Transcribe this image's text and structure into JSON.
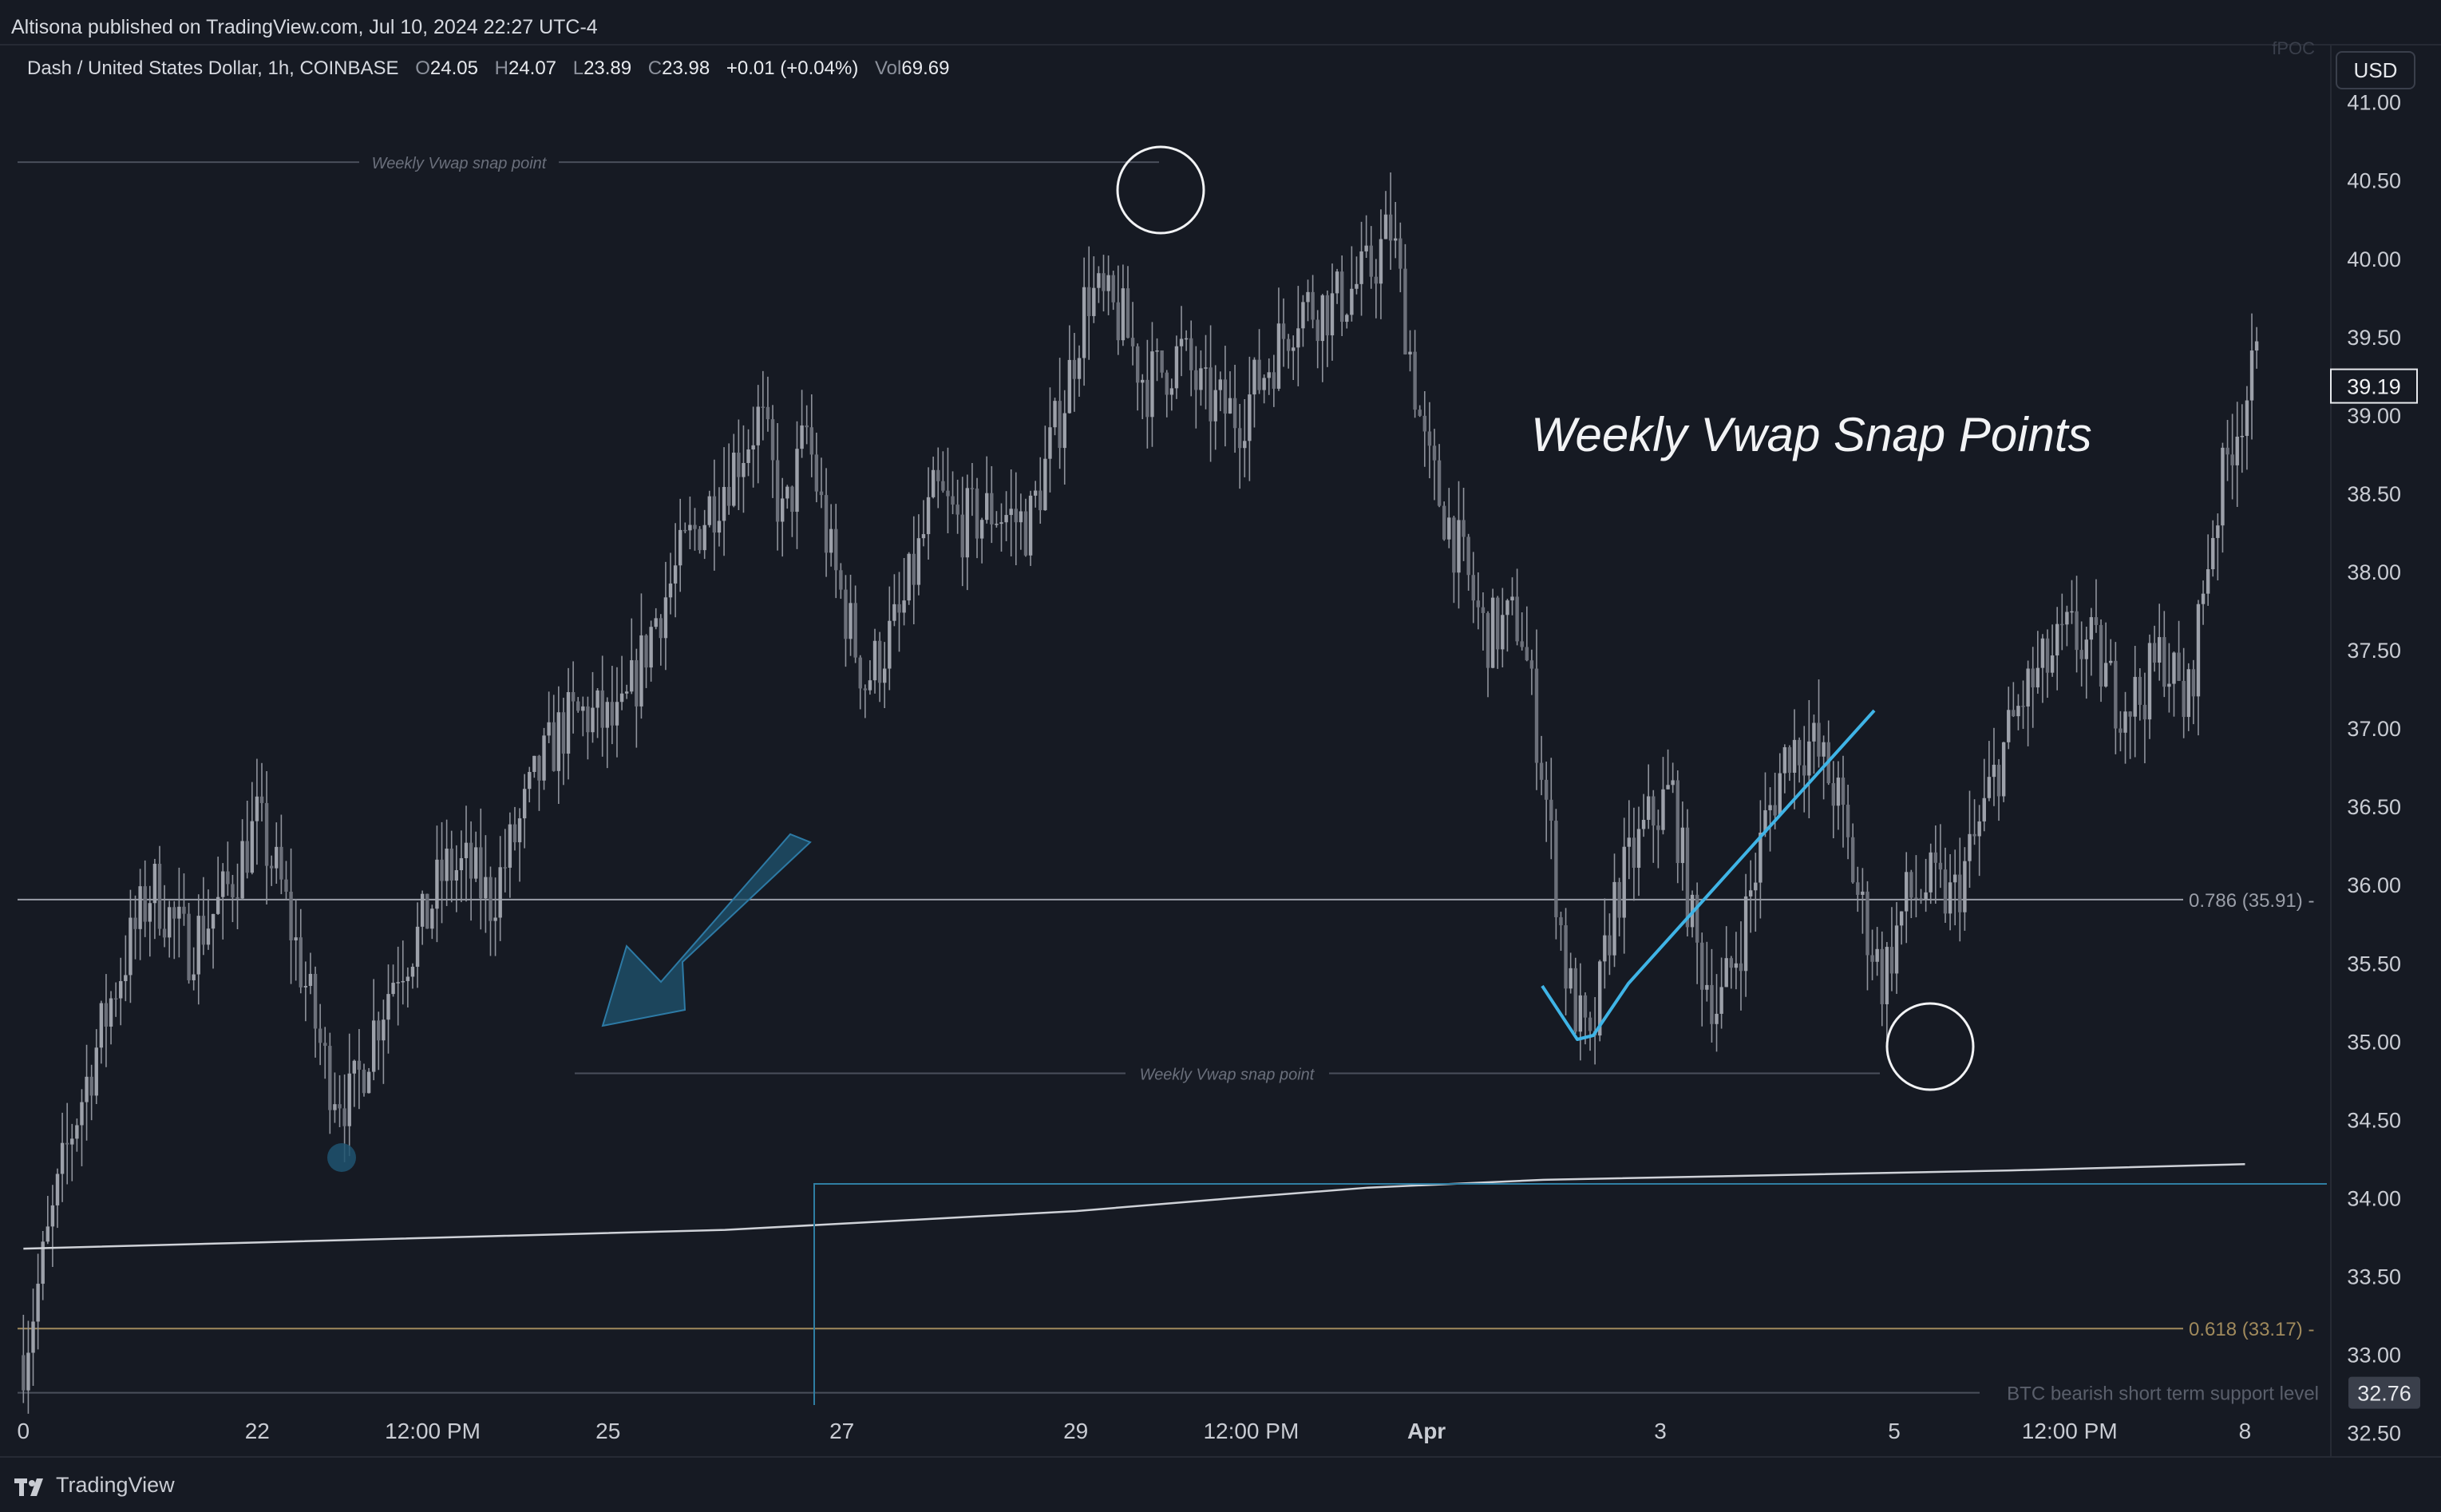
{
  "header": {
    "published": "Altisona published on TradingView.com, Jul 10, 2024 22:27 UTC-4"
  },
  "legend": {
    "symbol": "Dash / United States Dollar, 1h, COINBASE",
    "o_label": "O",
    "o": "24.05",
    "h_label": "H",
    "h": "24.07",
    "l_label": "L",
    "l": "23.89",
    "c_label": "C",
    "c": "23.98",
    "change": "+0.01 (+0.04%)",
    "vol_label": "Vol",
    "vol": "69.69"
  },
  "currency_button": "USD",
  "top_right_faded": "fPOC",
  "brand": {
    "name": "TradingView",
    "icon": "tradingview-logo-icon"
  },
  "colors": {
    "background": "#161a23",
    "candle": "#8f939c",
    "vwap_line": "#cfd2d8",
    "annotation_cyan": "#3fb4e6",
    "arrow_fill": "#1f5470",
    "fib_786": "#9a9ea8",
    "fib_618": "#a08a5c",
    "support": "#4a4f5b"
  },
  "annotations": {
    "title_text": "Weekly Vwap Snap Points",
    "snap_label_top": "Weekly Vwap snap point",
    "snap_label_mid": "Weekly Vwap snap point",
    "fib_786_label": "0.786 (35.91)",
    "fib_618_label": "0.618 (33.17)",
    "support_label": "BTC bearish short term support level"
  },
  "chart_data": {
    "type": "candlestick",
    "title": "Dash / United States Dollar, 1h, COINBASE",
    "y_axis": {
      "position": "right",
      "ticks": [
        32.5,
        33.0,
        33.5,
        34.0,
        34.5,
        35.0,
        35.5,
        36.0,
        36.5,
        37.0,
        37.5,
        38.0,
        38.5,
        39.0,
        39.5,
        40.0,
        40.5,
        41.0
      ],
      "tick_labels": [
        "32.50",
        "33.00",
        "33.50",
        "34.00",
        "34.50",
        "35.00",
        "35.50",
        "36.00",
        "36.50",
        "37.00",
        "37.50",
        "38.00",
        "38.50",
        "39.00",
        "39.50",
        "40.00",
        "40.50",
        "41.00"
      ],
      "range": [
        32.35,
        41.35
      ]
    },
    "x_axis": {
      "tick_labels": [
        "0",
        "22",
        "12:00 PM",
        "25",
        "27",
        "29",
        "12:00 PM",
        "Apr",
        "3",
        "5",
        "12:00 PM",
        "8"
      ],
      "range": [
        "Mar 20",
        "Apr 8"
      ]
    },
    "current_price": "39.19",
    "support_price_tag": "32.76",
    "levels": [
      {
        "name": "0.786 (35.91)",
        "value": 35.91
      },
      {
        "name": "0.618 (33.17)",
        "value": 33.17
      },
      {
        "name": "BTC bearish short term support level",
        "value": 32.76
      },
      {
        "name": "Weekly Vwap snap point",
        "value": 40.62
      },
      {
        "name": "Weekly Vwap snap point",
        "value": 34.8
      }
    ],
    "price_path": [
      [
        20.0,
        33.0
      ],
      [
        20.4,
        34.4
      ],
      [
        20.8,
        35.4
      ],
      [
        21.1,
        36.0
      ],
      [
        21.4,
        35.6
      ],
      [
        21.7,
        35.9
      ],
      [
        22.0,
        36.4
      ],
      [
        22.2,
        36.0
      ],
      [
        22.4,
        35.4
      ],
      [
        22.6,
        34.8
      ],
      [
        22.8,
        34.6
      ],
      [
        23.0,
        35.1
      ],
      [
        23.2,
        35.5
      ],
      [
        23.4,
        35.7
      ],
      [
        23.6,
        36.1
      ],
      [
        23.8,
        36.1
      ],
      [
        24.0,
        35.9
      ],
      [
        24.2,
        36.3
      ],
      [
        24.4,
        36.7
      ],
      [
        24.6,
        37.0
      ],
      [
        24.8,
        37.1
      ],
      [
        25.1,
        37.0
      ],
      [
        25.4,
        37.7
      ],
      [
        25.7,
        38.2
      ],
      [
        26.0,
        38.6
      ],
      [
        26.3,
        39.0
      ],
      [
        26.5,
        38.3
      ],
      [
        26.7,
        38.9
      ],
      [
        26.9,
        38.1
      ],
      [
        27.2,
        37.3
      ],
      [
        27.5,
        37.7
      ],
      [
        27.8,
        38.5
      ],
      [
        28.0,
        38.3
      ],
      [
        28.3,
        38.4
      ],
      [
        28.6,
        38.3
      ],
      [
        28.9,
        39.1
      ],
      [
        29.1,
        39.8
      ],
      [
        29.4,
        39.6
      ],
      [
        29.6,
        39.2
      ],
      [
        29.9,
        39.4
      ],
      [
        30.1,
        39.1
      ],
      [
        30.4,
        39.0
      ],
      [
        30.7,
        39.4
      ],
      [
        30.9,
        39.7
      ],
      [
        31.2,
        39.7
      ],
      [
        31.5,
        39.9
      ],
      [
        31.7,
        40.2
      ],
      [
        32.0,
        38.7
      ],
      [
        32.2,
        38.3
      ],
      [
        32.5,
        37.6
      ],
      [
        32.8,
        37.7
      ],
      [
        33.0,
        36.7
      ],
      [
        33.2,
        35.4
      ],
      [
        33.4,
        34.9
      ],
      [
        33.6,
        35.9
      ],
      [
        33.9,
        36.4
      ],
      [
        34.1,
        36.6
      ],
      [
        34.3,
        35.6
      ],
      [
        34.5,
        35.2
      ],
      [
        34.7,
        35.7
      ],
      [
        34.9,
        36.4
      ],
      [
        35.1,
        36.9
      ],
      [
        35.3,
        36.9
      ],
      [
        35.5,
        36.6
      ],
      [
        35.7,
        35.9
      ],
      [
        35.9,
        35.4
      ],
      [
        36.1,
        35.9
      ],
      [
        36.3,
        36.0
      ],
      [
        36.5,
        35.9
      ],
      [
        36.7,
        36.3
      ],
      [
        36.9,
        36.8
      ],
      [
        37.1,
        37.2
      ],
      [
        37.3,
        37.4
      ],
      [
        37.5,
        37.6
      ],
      [
        37.7,
        37.5
      ],
      [
        37.9,
        37.2
      ],
      [
        38.1,
        37.2
      ],
      [
        38.3,
        37.5
      ],
      [
        38.5,
        37.1
      ],
      [
        38.7,
        38.2
      ],
      [
        38.9,
        38.9
      ],
      [
        39.1,
        39.3
      ]
    ],
    "vwap_path": [
      [
        20.0,
        33.68
      ],
      [
        22.0,
        33.72
      ],
      [
        24.0,
        33.76
      ],
      [
        26.0,
        33.8
      ],
      [
        27.5,
        33.86
      ],
      [
        29.0,
        33.92
      ],
      [
        30.3,
        34.0
      ],
      [
        31.5,
        34.07
      ],
      [
        33.0,
        34.12
      ],
      [
        35.0,
        34.15
      ],
      [
        37.0,
        34.18
      ],
      [
        39.0,
        34.22
      ]
    ],
    "x_tick_positions": [
      20.0,
      22.0,
      23.5,
      25.0,
      27.0,
      29.0,
      30.5,
      32.0,
      34.0,
      36.0,
      37.5,
      39.0
    ]
  }
}
